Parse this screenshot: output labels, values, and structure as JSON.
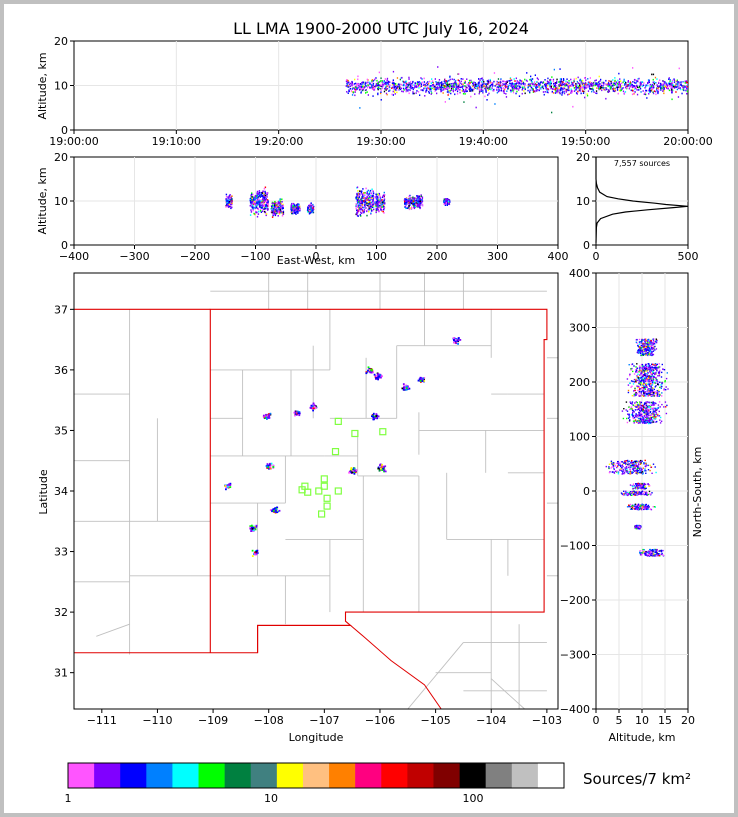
{
  "title": "LL LMA 1900-2000 UTC July 16, 2024",
  "chart_data": [
    {
      "id": "time-height",
      "type": "scatter",
      "ylabel": "Altitude, km",
      "xlabel": "",
      "x_ticks": [
        "19:00:00",
        "19:10:00",
        "19:20:00",
        "19:30:00",
        "19:40:00",
        "19:50:00",
        "20:00:00"
      ],
      "xlim_minutes": [
        0,
        60
      ],
      "ylim": [
        0,
        20
      ],
      "y_ticks": [
        "0",
        "10",
        "20"
      ],
      "source_time_range_minutes": [
        26.5,
        60
      ],
      "source_altitude_band_km": [
        7,
        14
      ]
    },
    {
      "id": "east-west-altitude",
      "type": "scatter",
      "xlabel": "East-West, km",
      "ylabel": "Altitude, km",
      "xlim": [
        -400,
        400
      ],
      "x_ticks": [
        "−400",
        "−300",
        "−200",
        "−100",
        "0",
        "100",
        "200",
        "300",
        "400"
      ],
      "ylim": [
        0,
        20
      ],
      "y_ticks": [
        "0",
        "10",
        "20"
      ],
      "clusters": [
        {
          "x": -145,
          "width": 10,
          "alt_low": 8,
          "alt_high": 12
        },
        {
          "x": -95,
          "width": 30,
          "alt_low": 6,
          "alt_high": 14
        },
        {
          "x": -65,
          "width": 20,
          "alt_low": 6,
          "alt_high": 11
        },
        {
          "x": -35,
          "width": 15,
          "alt_low": 7,
          "alt_high": 10
        },
        {
          "x": -10,
          "width": 10,
          "alt_low": 7,
          "alt_high": 10
        },
        {
          "x": 80,
          "width": 30,
          "alt_low": 6,
          "alt_high": 14
        },
        {
          "x": 105,
          "width": 15,
          "alt_low": 6,
          "alt_high": 13
        },
        {
          "x": 160,
          "width": 30,
          "alt_low": 8,
          "alt_high": 12
        },
        {
          "x": 215,
          "width": 10,
          "alt_low": 9,
          "alt_high": 11
        }
      ]
    },
    {
      "id": "altitude-histogram",
      "type": "line",
      "annotation": "7,557 sources",
      "xlim": [
        0,
        500
      ],
      "x_ticks": [
        "0",
        "500"
      ],
      "ylim": [
        0,
        20
      ],
      "y_ticks": [
        "0",
        "10",
        "20"
      ],
      "profile": [
        {
          "alt": 0.5,
          "count": 0
        },
        {
          "alt": 4,
          "count": 2
        },
        {
          "alt": 5,
          "count": 6
        },
        {
          "alt": 6,
          "count": 25
        },
        {
          "alt": 7,
          "count": 90
        },
        {
          "alt": 7.5,
          "count": 160
        },
        {
          "alt": 8,
          "count": 280
        },
        {
          "alt": 8.5,
          "count": 420
        },
        {
          "alt": 8.8,
          "count": 500
        },
        {
          "alt": 9.2,
          "count": 380
        },
        {
          "alt": 9.5,
          "count": 320
        },
        {
          "alt": 10,
          "count": 200
        },
        {
          "alt": 10.5,
          "count": 120
        },
        {
          "alt": 11,
          "count": 60
        },
        {
          "alt": 12,
          "count": 20
        },
        {
          "alt": 13,
          "count": 8
        },
        {
          "alt": 14,
          "count": 2
        },
        {
          "alt": 15,
          "count": 0
        },
        {
          "alt": 20,
          "count": 0
        }
      ]
    },
    {
      "id": "plan-view",
      "type": "scatter",
      "xlabel": "Longitude",
      "ylabel": "Latitude",
      "xlim": [
        -111.5,
        -102.8
      ],
      "ylim": [
        30.4,
        37.6
      ],
      "x_ticks": [
        "−111",
        "−110",
        "−109",
        "−108",
        "−107",
        "−106",
        "−105",
        "−104",
        "−103"
      ],
      "y_ticks": [
        "31",
        "32",
        "33",
        "34",
        "35",
        "36",
        "37"
      ],
      "clusters": [
        {
          "lon": -108.05,
          "lat": 35.25
        },
        {
          "lon": -107.5,
          "lat": 35.3
        },
        {
          "lon": -107.2,
          "lat": 35.4
        },
        {
          "lon": -106.2,
          "lat": 36.0
        },
        {
          "lon": -106.05,
          "lat": 35.9
        },
        {
          "lon": -105.55,
          "lat": 35.72
        },
        {
          "lon": -105.25,
          "lat": 35.85
        },
        {
          "lon": -106.1,
          "lat": 35.25
        },
        {
          "lon": -108.0,
          "lat": 34.42
        },
        {
          "lon": -105.98,
          "lat": 34.4
        },
        {
          "lon": -108.75,
          "lat": 34.1
        },
        {
          "lon": -107.9,
          "lat": 33.7
        },
        {
          "lon": -108.25,
          "lat": 33.0
        },
        {
          "lon": -108.3,
          "lat": 33.4
        },
        {
          "lon": -104.65,
          "lat": 36.5
        },
        {
          "lon": -106.5,
          "lat": 34.35
        }
      ],
      "stations": [
        {
          "lon": -106.75,
          "lat": 35.15
        },
        {
          "lon": -106.45,
          "lat": 34.95
        },
        {
          "lon": -105.95,
          "lat": 34.98
        },
        {
          "lon": -106.8,
          "lat": 34.65
        },
        {
          "lon": -107.0,
          "lat": 34.2
        },
        {
          "lon": -107.0,
          "lat": 34.08
        },
        {
          "lon": -107.1,
          "lat": 34.0
        },
        {
          "lon": -107.35,
          "lat": 34.08
        },
        {
          "lon": -107.3,
          "lat": 33.98
        },
        {
          "lon": -107.4,
          "lat": 34.02
        },
        {
          "lon": -106.75,
          "lat": 34.0
        },
        {
          "lon": -106.95,
          "lat": 33.88
        },
        {
          "lon": -106.95,
          "lat": 33.75
        },
        {
          "lon": -107.05,
          "lat": 33.62
        }
      ]
    },
    {
      "id": "altitude-north-south",
      "type": "scatter",
      "xlabel": "Altitude, km",
      "ylabel": "North-South, km",
      "xlim": [
        0,
        20
      ],
      "x_ticks": [
        "0",
        "5",
        "10",
        "15",
        "20"
      ],
      "ylim": [
        -400,
        400
      ],
      "y_ticks": [
        "−400",
        "−300",
        "−200",
        "−100",
        "0",
        "100",
        "200",
        "300",
        "400"
      ],
      "clusters": [
        {
          "y": 265,
          "height": 30,
          "alt_low": 8,
          "alt_high": 14
        },
        {
          "y": 205,
          "height": 60,
          "alt_low": 6,
          "alt_high": 16
        },
        {
          "y": 145,
          "height": 40,
          "alt_low": 5,
          "alt_high": 16
        },
        {
          "y": 45,
          "height": 25,
          "alt_low": 1,
          "alt_high": 14
        },
        {
          "y": 10,
          "height": 10,
          "alt_low": 7,
          "alt_high": 12
        },
        {
          "y": -3,
          "height": 8,
          "alt_low": 4,
          "alt_high": 13
        },
        {
          "y": -28,
          "height": 10,
          "alt_low": 6,
          "alt_high": 13
        },
        {
          "y": -65,
          "height": 6,
          "alt_low": 8,
          "alt_high": 10
        },
        {
          "y": -112,
          "height": 12,
          "alt_low": 8,
          "alt_high": 16
        }
      ]
    }
  ],
  "colorbar": {
    "label": "Sources/7 km²",
    "ticks": [
      "1",
      "10",
      "100"
    ],
    "colors": [
      "#ff55ff",
      "#8000ff",
      "#0000ff",
      "#0080ff",
      "#00ffff",
      "#00ff00",
      "#008040",
      "#408080",
      "#ffff00",
      "#ffc080",
      "#ff8000",
      "#ff0080",
      "#ff0000",
      "#c00000",
      "#800000",
      "#000000",
      "#808080",
      "#c0c0c0",
      "#ffffff"
    ]
  },
  "series_colors": {
    "low": "#8000ff",
    "mid": "#0000ff",
    "high": "#ff0000",
    "station": "#80ff40",
    "state_border": "#e00000",
    "county": "#c0c0c0"
  }
}
